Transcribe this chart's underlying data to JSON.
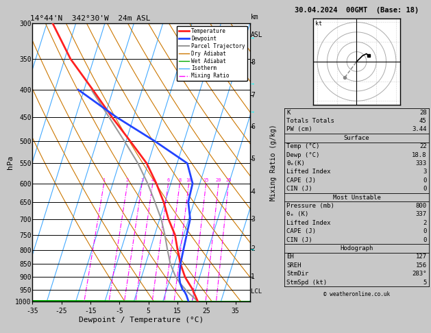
{
  "title_left": "14°44'N  342°30'W  24m ASL",
  "title_right": "30.04.2024  00GMT  (Base: 18)",
  "xlabel": "Dewpoint / Temperature (°C)",
  "ylabel_left": "hPa",
  "pressure_levels": [
    300,
    350,
    400,
    450,
    500,
    550,
    600,
    650,
    700,
    750,
    800,
    850,
    900,
    950,
    1000
  ],
  "km_pressures": [
    355,
    410,
    470,
    540,
    622,
    700,
    795,
    900
  ],
  "km_labels": [
    "8",
    "7",
    "6",
    "5",
    "4",
    "3",
    "2",
    "1"
  ],
  "lcl_pressure": 957,
  "temp_profile_p": [
    1000,
    975,
    960,
    950,
    925,
    900,
    850,
    800,
    750,
    700,
    650,
    600,
    550,
    500,
    450,
    400,
    350,
    300
  ],
  "temp_profile_t": [
    22.0,
    20.5,
    19.5,
    19.0,
    17.0,
    15.0,
    12.0,
    9.5,
    7.0,
    3.0,
    -0.5,
    -5.0,
    -10.5,
    -18.5,
    -27.5,
    -37.0,
    -48.0,
    -58.0
  ],
  "dewp_profile_p": [
    1000,
    975,
    960,
    950,
    925,
    900,
    850,
    800,
    750,
    700,
    650,
    600,
    550,
    500,
    450,
    400
  ],
  "dewp_profile_t": [
    18.8,
    17.5,
    16.5,
    15.5,
    14.0,
    13.0,
    12.0,
    11.5,
    11.0,
    10.5,
    8.0,
    7.5,
    3.5,
    -10.0,
    -26.0,
    -42.0
  ],
  "parcel_profile_p": [
    1000,
    960,
    925,
    900,
    850,
    800,
    750,
    700,
    650,
    600,
    550,
    500,
    450,
    400
  ],
  "parcel_profile_t": [
    22.0,
    17.5,
    14.0,
    11.8,
    8.5,
    6.0,
    3.5,
    0.5,
    -3.5,
    -8.0,
    -13.5,
    -20.5,
    -28.5,
    -37.5
  ],
  "mixing_ratio_values": [
    1,
    2,
    3,
    4,
    6,
    8,
    10,
    15,
    20,
    25
  ],
  "skew_factor": 30,
  "pmin": 300,
  "pmax": 1000,
  "tmin": -35,
  "tmax": 40,
  "bg_color": "#c8c8c8",
  "plot_bg": "#ffffff",
  "dry_adiabat_color": "#cc7700",
  "wet_adiabat_color": "#00aa00",
  "isotherm_color": "#44aaff",
  "mixing_ratio_color": "#ff00ff",
  "temp_color": "#ff2020",
  "dewp_color": "#2244ff",
  "parcel_color": "#999999",
  "stats": {
    "K": 28,
    "Totals_Totals": 45,
    "PW_cm": "3.44",
    "Surface_Temp": 22,
    "Surface_Dewp": "18.8",
    "theta_e_K": 333,
    "Lifted_Index": 3,
    "CAPE_J": 0,
    "CIN_J": 0,
    "MU_Pressure_mb": 800,
    "MU_theta_e_K": 337,
    "MU_Lifted_Index": 2,
    "MU_CAPE_J": 0,
    "MU_CIN_J": 0,
    "EH": 127,
    "SREH": 156,
    "StmDir": "283°",
    "StmSpd_kt": 5
  },
  "legend_items": [
    {
      "label": "Temperature",
      "color": "#ff2020",
      "lw": 2.0,
      "ls": "-"
    },
    {
      "label": "Dewpoint",
      "color": "#2244ff",
      "lw": 2.0,
      "ls": "-"
    },
    {
      "label": "Parcel Trajectory",
      "color": "#999999",
      "lw": 1.5,
      "ls": "-"
    },
    {
      "label": "Dry Adiabat",
      "color": "#cc7700",
      "lw": 1.0,
      "ls": "-"
    },
    {
      "label": "Wet Adiabat",
      "color": "#00aa00",
      "lw": 1.0,
      "ls": "-"
    },
    {
      "label": "Isotherm",
      "color": "#44aaff",
      "lw": 1.0,
      "ls": "-"
    },
    {
      "label": "Mixing Ratio",
      "color": "#ff00ff",
      "lw": 1.0,
      "ls": "-."
    }
  ]
}
